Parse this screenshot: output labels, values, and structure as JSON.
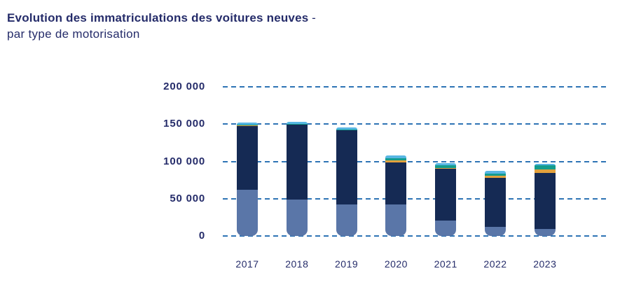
{
  "header": {
    "title_bold": "Evolution des immatriculations des voitures neuves",
    "title_dash": " -",
    "subtitle": "par type de motorisation"
  },
  "colors": {
    "text_navy": "#252c6a",
    "gridline_blue": "#2e74b5"
  },
  "chart_data": {
    "type": "bar",
    "stacked": true,
    "title": "Evolution des immatriculations des voitures neuves - par type de motorisation",
    "xlabel": "",
    "ylabel": "",
    "ylim": [
      0,
      200000
    ],
    "grid": "dashed horizontal",
    "legend": "none visible",
    "categories": [
      "2017",
      "2018",
      "2019",
      "2020",
      "2021",
      "2022",
      "2023"
    ],
    "yticks": [
      {
        "value": 0,
        "label": "0"
      },
      {
        "value": 50000,
        "label": "50 000"
      },
      {
        "value": 100000,
        "label": "100 000"
      },
      {
        "value": 150000,
        "label": "150 000"
      },
      {
        "value": 200000,
        "label": "200 000"
      }
    ],
    "series": [
      {
        "name": "segment-steel-blue",
        "color": "#5a76a8",
        "values": [
          62000,
          48500,
          42000,
          42500,
          21000,
          12500,
          9000
        ]
      },
      {
        "name": "segment-dark-navy",
        "color": "#152a54",
        "values": [
          86000,
          100500,
          100000,
          56500,
          69000,
          65000,
          75500
        ]
      },
      {
        "name": "segment-orange",
        "color": "#e2a23d",
        "values": [
          500,
          1200,
          400,
          2400,
          1500,
          2900,
          4300
        ]
      },
      {
        "name": "segment-teal-green",
        "color": "#149c8d",
        "values": [
          400,
          400,
          600,
          2900,
          3300,
          2900,
          5700
        ]
      },
      {
        "name": "segment-light-cyan",
        "color": "#57b6e3",
        "values": [
          2800,
          2000,
          2700,
          3800,
          2900,
          3800,
          1900
        ]
      }
    ]
  }
}
